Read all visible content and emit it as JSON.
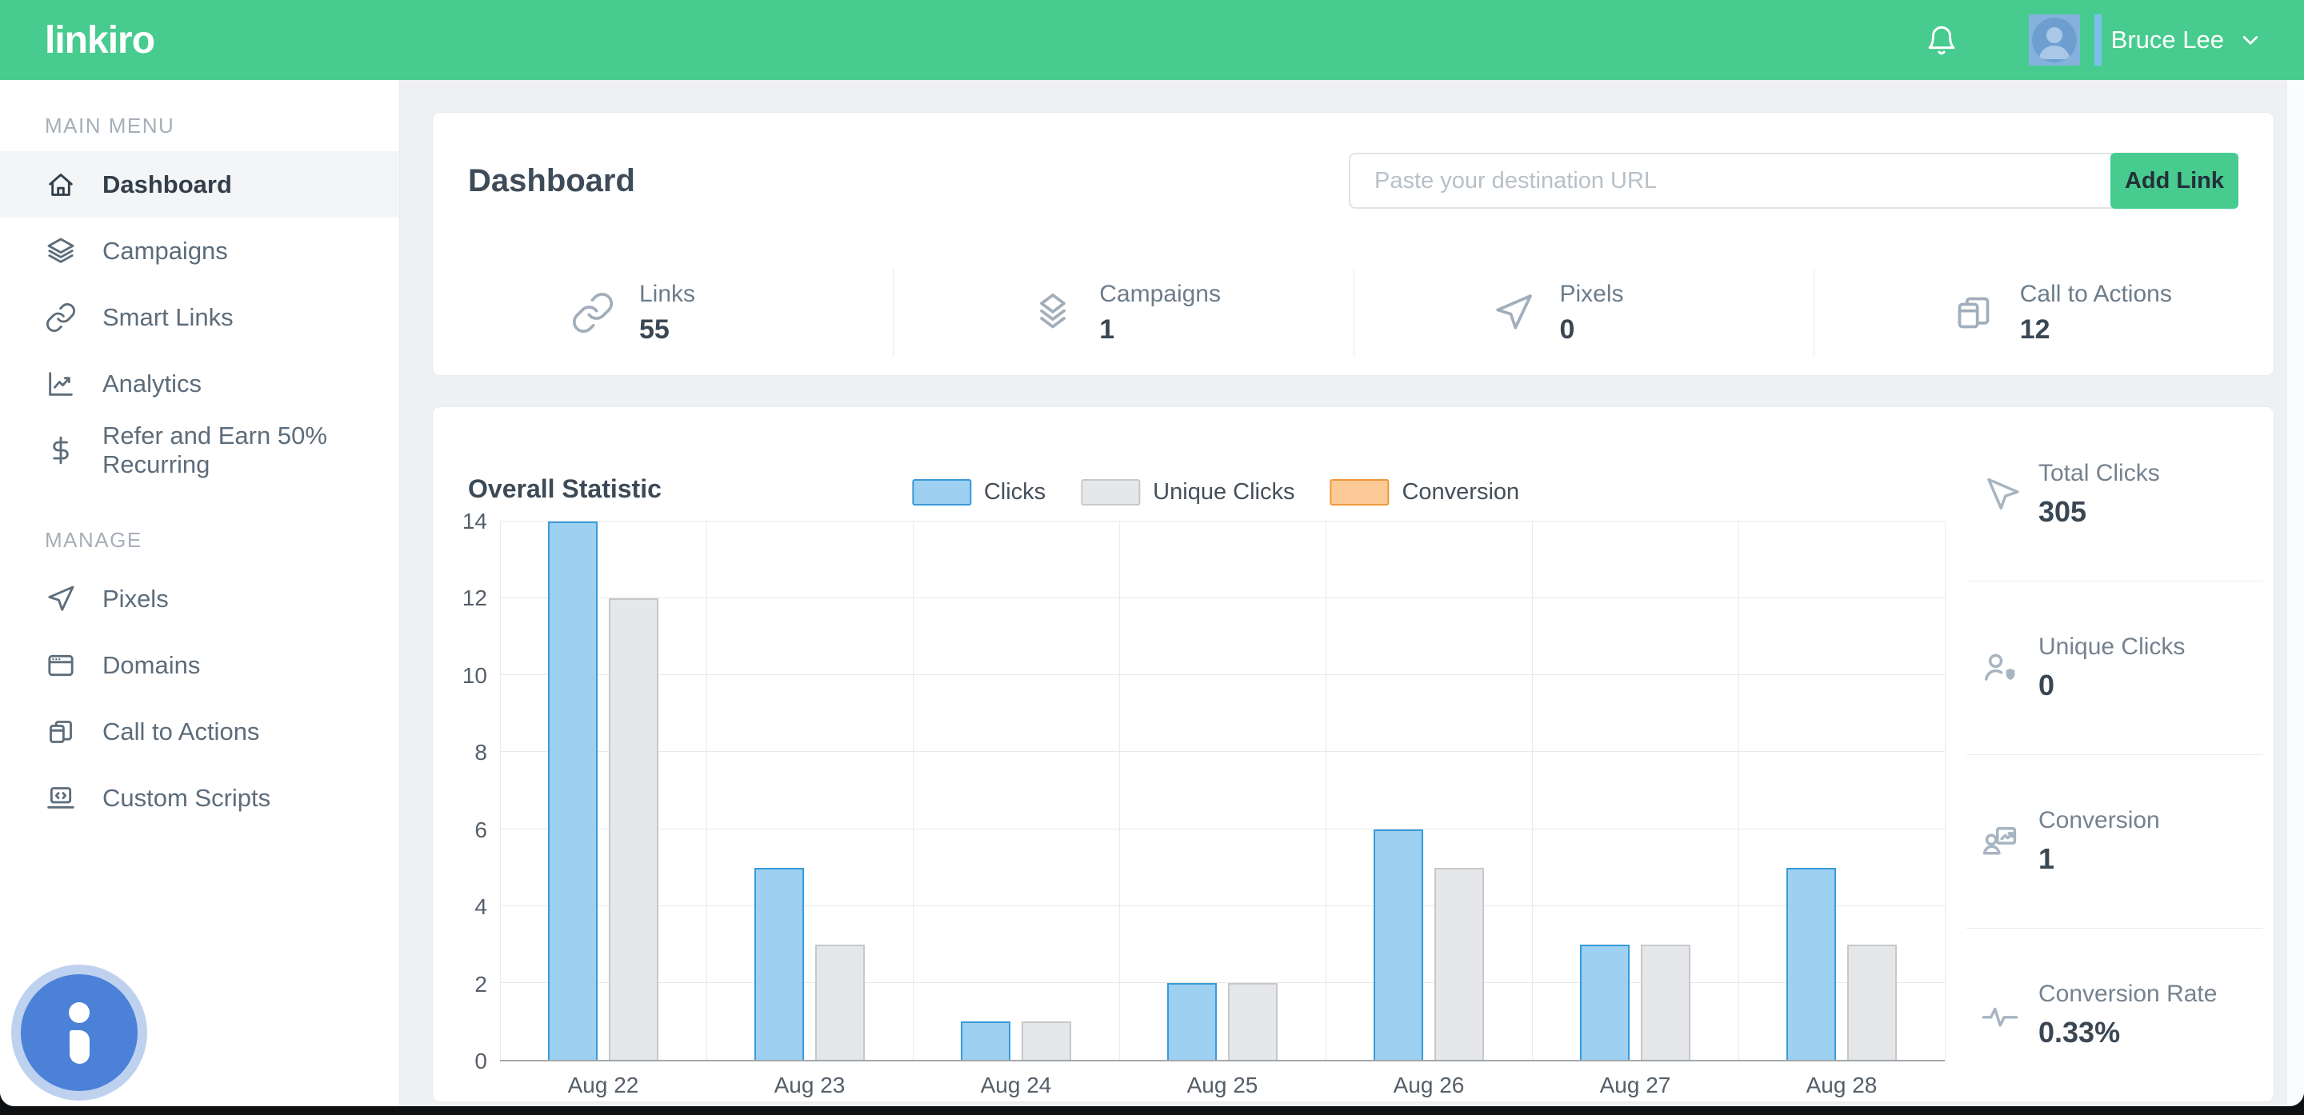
{
  "header": {
    "logo": "linkiro",
    "user_name": "Bruce Lee"
  },
  "sidebar": {
    "sections": [
      {
        "title": "MAIN MENU",
        "items": [
          {
            "label": "Dashboard",
            "icon": "home-icon",
            "active": true
          },
          {
            "label": "Campaigns",
            "icon": "layers-icon",
            "active": false
          },
          {
            "label": "Smart Links",
            "icon": "link-icon",
            "active": false
          },
          {
            "label": "Analytics",
            "icon": "analytics-icon",
            "active": false
          },
          {
            "label": "Refer and Earn 50% Recurring",
            "icon": "dollar-icon",
            "active": false
          }
        ]
      },
      {
        "title": "MANAGE",
        "items": [
          {
            "label": "Pixels",
            "icon": "paper-plane-icon",
            "active": false
          },
          {
            "label": "Domains",
            "icon": "browser-icon",
            "active": false
          },
          {
            "label": "Call to Actions",
            "icon": "cards-icon",
            "active": false
          },
          {
            "label": "Custom Scripts",
            "icon": "laptop-code-icon",
            "active": false
          }
        ]
      }
    ]
  },
  "main": {
    "title": "Dashboard"
  },
  "toolbar": {
    "url_placeholder": "Paste your destination URL",
    "add_link_label": "Add Link"
  },
  "stats": [
    {
      "label": "Links",
      "value": "55",
      "icon": "link-icon"
    },
    {
      "label": "Campaigns",
      "value": "1",
      "icon": "layers-icon"
    },
    {
      "label": "Pixels",
      "value": "0",
      "icon": "paper-plane-icon"
    },
    {
      "label": "Call to Actions",
      "value": "12",
      "icon": "cards-icon"
    }
  ],
  "chart_data": {
    "type": "bar",
    "title": "Overall Statistic",
    "categories": [
      "Aug 22",
      "Aug 23",
      "Aug 24",
      "Aug 25",
      "Aug 26",
      "Aug 27",
      "Aug 28"
    ],
    "series": [
      {
        "name": "Clicks",
        "values": [
          14,
          5,
          1,
          2,
          6,
          3,
          5
        ],
        "fill": "#9dd0f1",
        "border": "#3a9ad9"
      },
      {
        "name": "Unique Clicks",
        "values": [
          12,
          3,
          1,
          2,
          5,
          3,
          3
        ],
        "fill": "#e6e7e9",
        "border": "#c6c9cc"
      },
      {
        "name": "Conversion",
        "values": [
          0,
          0,
          0,
          0,
          0,
          0,
          0
        ],
        "fill": "#fbca96",
        "border": "#f0983a"
      }
    ],
    "ylim": [
      0,
      14
    ],
    "yticks": [
      0,
      2,
      4,
      6,
      8,
      10,
      12,
      14
    ],
    "grid": true,
    "legend_position": "top-center"
  },
  "summary": [
    {
      "label": "Total Clicks",
      "value": "305",
      "icon": "cursor-icon"
    },
    {
      "label": "Unique Clicks",
      "value": "0",
      "icon": "user-shield-icon"
    },
    {
      "label": "Conversion",
      "value": "1",
      "icon": "user-chart-icon"
    },
    {
      "label": "Conversion Rate",
      "value": "0.33%",
      "icon": "pulse-icon"
    }
  ],
  "colors": {
    "brand_green": "#47cb8f",
    "info_blue": "#4c81d8",
    "bar_clicks": "#9dd0f1",
    "bar_unique": "#e6e7e9",
    "bar_conversion": "#fbca96"
  }
}
